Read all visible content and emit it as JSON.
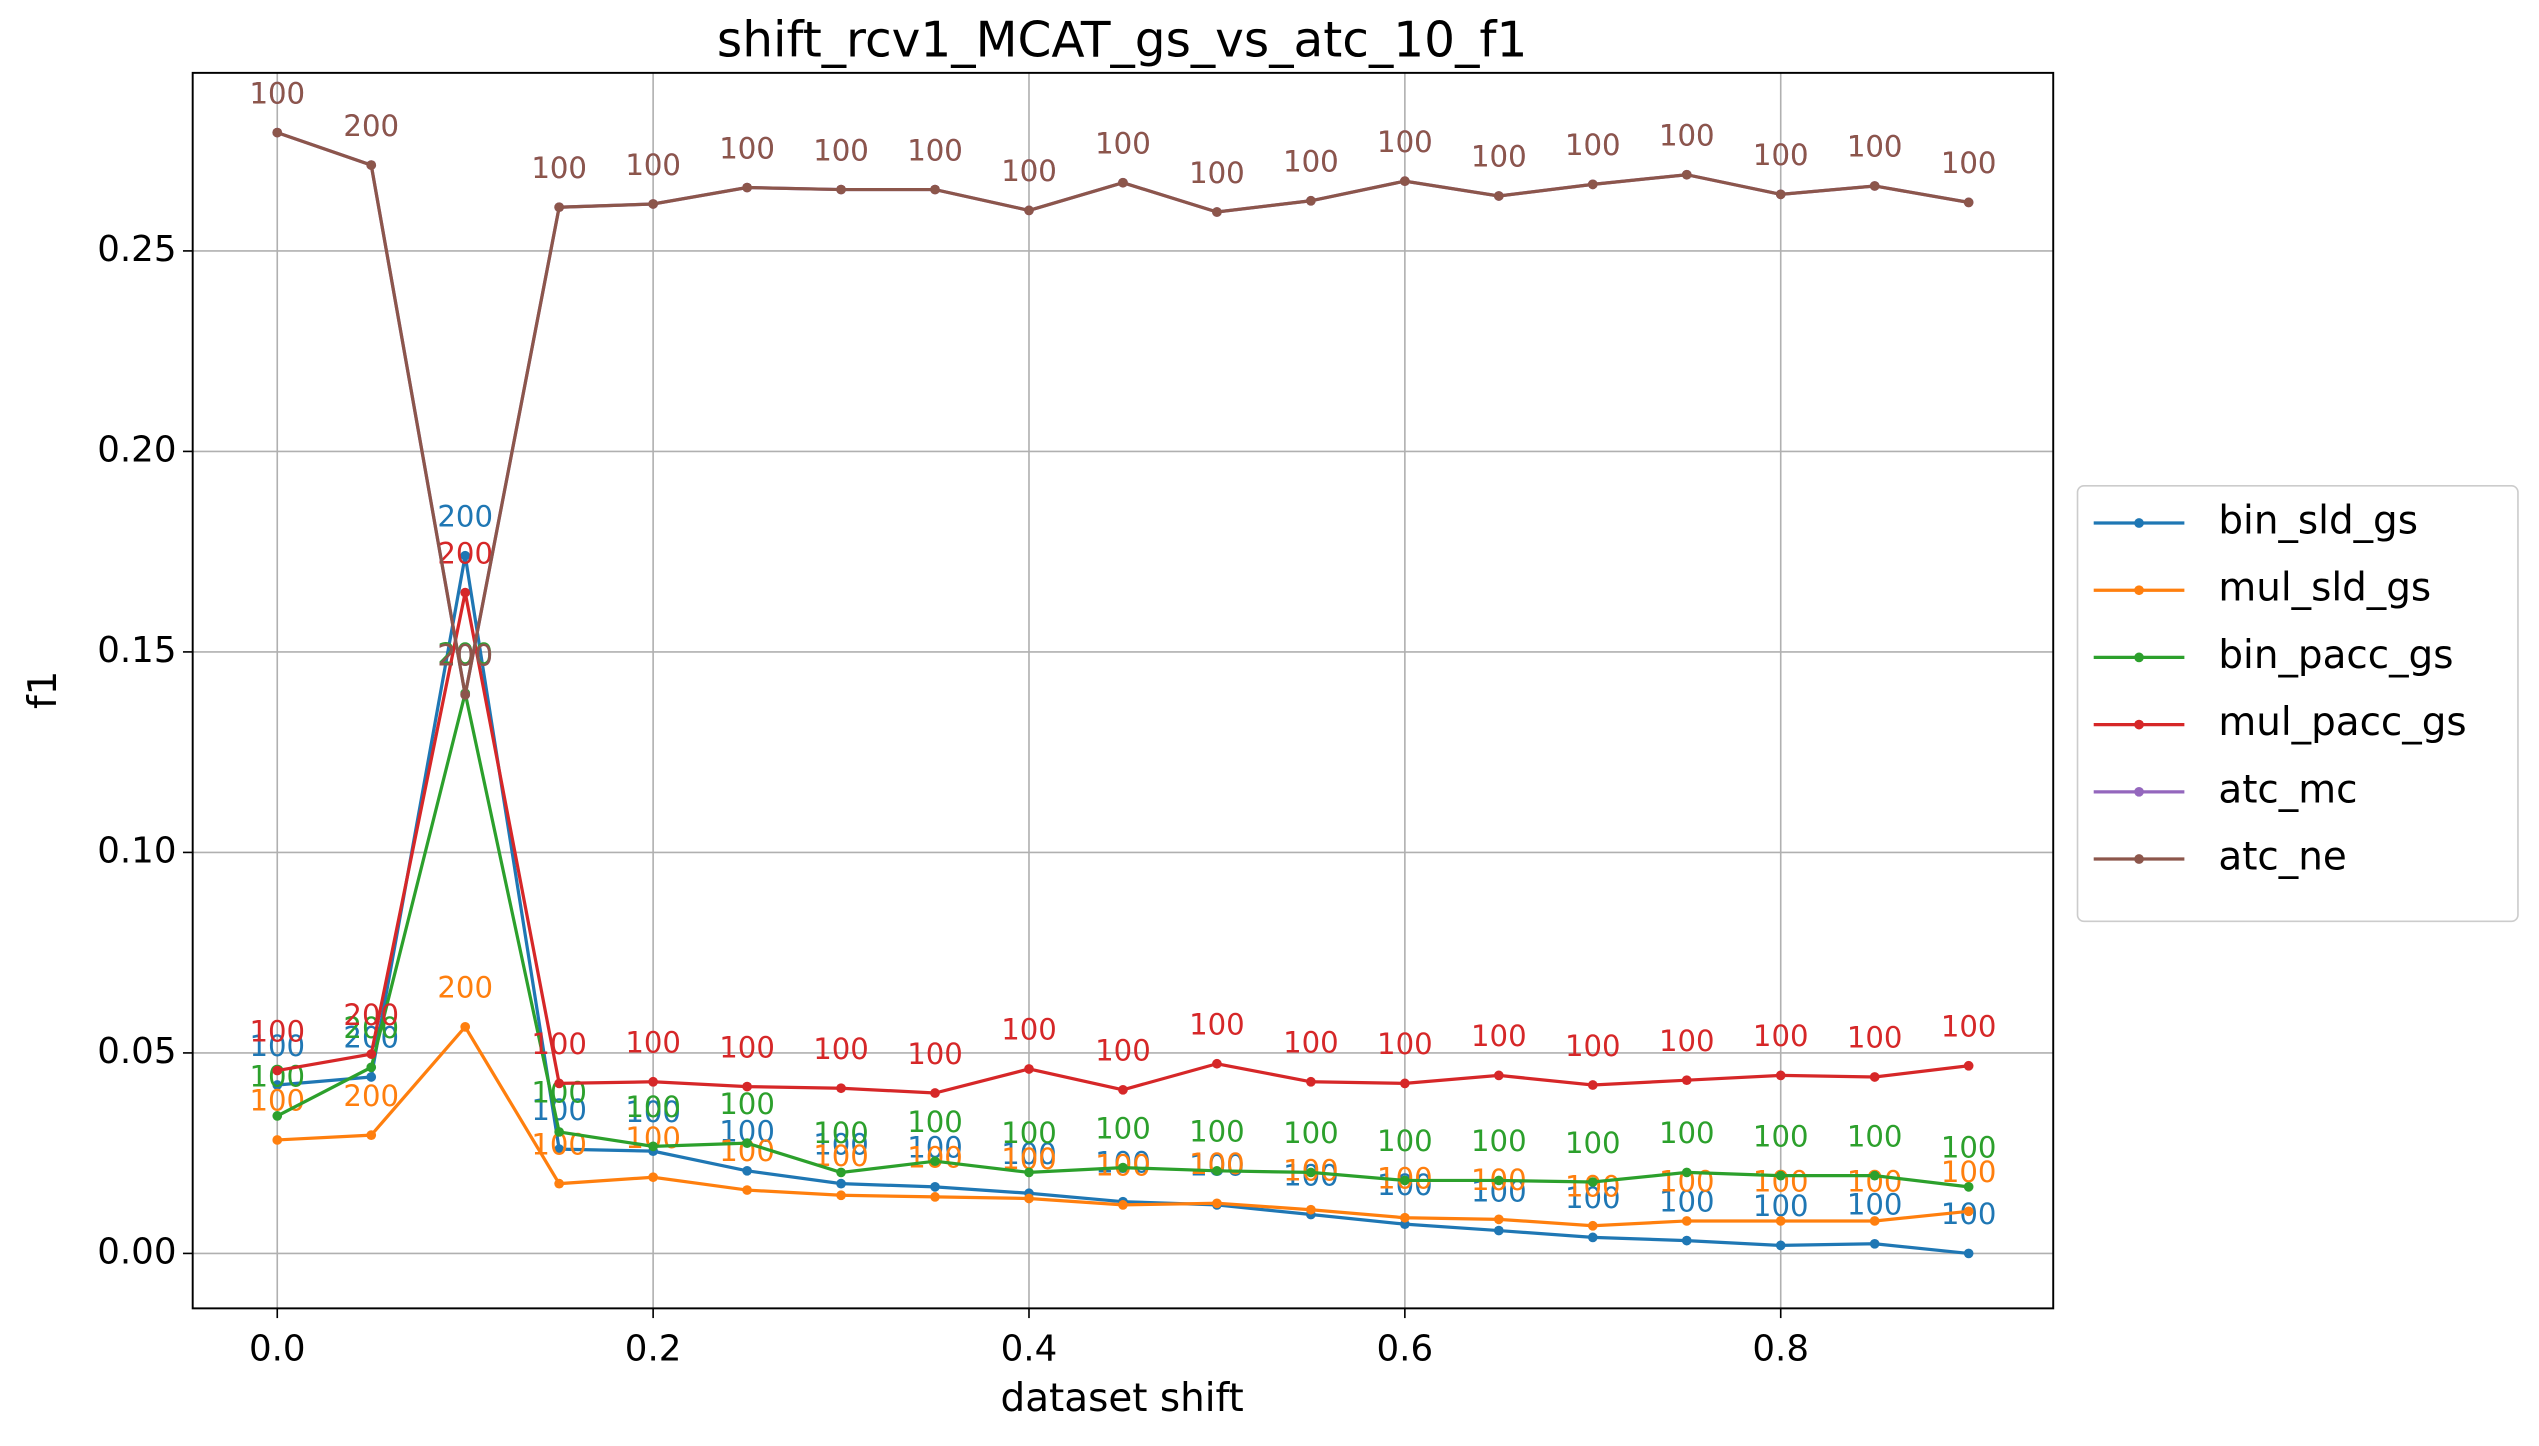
{
  "chart_data": {
    "type": "line",
    "title": "shift_rcv1_MCAT_gs_vs_atc_10_f1",
    "xlabel": "dataset shift",
    "ylabel": "f1",
    "x": [
      0,
      0.05,
      0.1,
      0.15,
      0.2,
      0.25,
      0.3,
      0.35,
      0.4,
      0.45,
      0.5,
      0.55,
      0.6,
      0.65,
      0.7,
      0.75,
      0.8,
      0.85,
      0.9
    ],
    "xlim": [
      -0.045,
      0.945
    ],
    "ylim": [
      -0.0137,
      0.2944
    ],
    "xticks": [
      {
        "value": 0,
        "label": "0.0"
      },
      0.2,
      0.4,
      0.6,
      0.8
    ],
    "yticks": [
      {
        "value": 0,
        "label": "0.00"
      },
      0.05,
      {
        "value": 0.1,
        "label": "0.10"
      },
      0.15,
      {
        "value": 0.2,
        "label": "0.20"
      },
      0.25
    ],
    "grid": true,
    "legend": "right outside",
    "series": [
      {
        "name": "bin_sld_gs",
        "color": "#1f77b4",
        "values": [
          0.042,
          0.044,
          0.174,
          0.026,
          0.0255,
          0.0206,
          0.0174,
          0.0166,
          0.015,
          0.0129,
          0.0121,
          0.0097,
          0.0073,
          0.0057,
          0.004,
          0.0032,
          0.002,
          0.0024,
          0
        ],
        "value_labels": [
          "100",
          "200",
          "200",
          "100",
          "100",
          "100",
          "100",
          "100",
          "100",
          "100",
          "100",
          "100",
          "100",
          "100",
          "100",
          "100",
          "100",
          "100",
          "100"
        ]
      },
      {
        "name": "mul_sld_gs",
        "color": "#ff7f0e",
        "values": [
          0.0283,
          0.0295,
          0.0565,
          0.0174,
          0.019,
          0.0158,
          0.0145,
          0.0141,
          0.0137,
          0.0121,
          0.0125,
          0.0109,
          0.0089,
          0.0085,
          0.0069,
          0.0081,
          0.0081,
          0.0081,
          0.0105
        ],
        "value_labels": [
          "100",
          "200",
          "200",
          "100",
          "100",
          "100",
          "100",
          "100",
          "100",
          "100",
          "100",
          "100",
          "100",
          "100",
          "100",
          "100",
          "100",
          "100",
          "100"
        ]
      },
      {
        "name": "bin_pacc_gs",
        "color": "#2ca02c",
        "values": [
          0.0343,
          0.0464,
          0.1397,
          0.0303,
          0.0267,
          0.0275,
          0.0202,
          0.023,
          0.0202,
          0.0214,
          0.0206,
          0.0202,
          0.0182,
          0.0182,
          0.0178,
          0.0202,
          0.0194,
          0.0194,
          0.0166
        ],
        "value_labels": [
          "100",
          "200",
          "200",
          "100",
          "100",
          "100",
          "100",
          "100",
          "100",
          "100",
          "100",
          "100",
          "100",
          "100",
          "100",
          "100",
          "100",
          "100",
          "100"
        ]
      },
      {
        "name": "mul_pacc_gs",
        "color": "#d62728",
        "values": [
          0.0456,
          0.0497,
          0.1648,
          0.0424,
          0.0428,
          0.0416,
          0.0412,
          0.04,
          0.046,
          0.0408,
          0.0473,
          0.0428,
          0.0424,
          0.0444,
          0.042,
          0.0432,
          0.0444,
          0.044,
          0.0468
        ],
        "value_labels": [
          "100",
          "200",
          "200",
          "100",
          "100",
          "100",
          "100",
          "100",
          "100",
          "100",
          "100",
          "100",
          "100",
          "100",
          "100",
          "100",
          "100",
          "100",
          "100"
        ]
      },
      {
        "name": "atc_mc",
        "color": "#9467bd",
        "values": [
          0.2795,
          0.2714,
          0.1393,
          0.2609,
          0.2617,
          0.2658,
          0.2653,
          0.2653,
          0.2601,
          0.267,
          0.2597,
          0.2625,
          0.2674,
          0.2637,
          0.2666,
          0.269,
          0.2641,
          0.2662,
          0.2621
        ],
        "value_labels": [
          "100",
          "200",
          "200",
          "100",
          "100",
          "100",
          "100",
          "100",
          "100",
          "100",
          "100",
          "100",
          "100",
          "100",
          "100",
          "100",
          "100",
          "100",
          "100"
        ]
      },
      {
        "name": "atc_ne",
        "color": "#8c564b",
        "values": [
          0.2795,
          0.2714,
          0.1393,
          0.2609,
          0.2617,
          0.2658,
          0.2653,
          0.2653,
          0.2601,
          0.267,
          0.2597,
          0.2625,
          0.2674,
          0.2637,
          0.2666,
          0.269,
          0.2641,
          0.2662,
          0.2621
        ],
        "value_labels": [
          "100",
          "200",
          "200",
          "100",
          "100",
          "100",
          "100",
          "100",
          "100",
          "100",
          "100",
          "100",
          "100",
          "100",
          "100",
          "100",
          "100",
          "100",
          "100"
        ]
      }
    ]
  }
}
